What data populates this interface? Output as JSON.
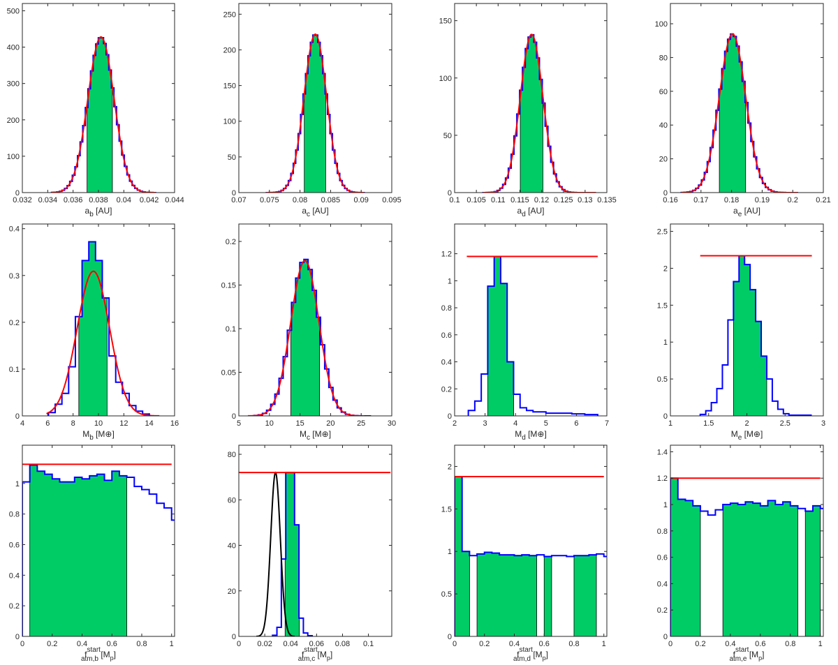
{
  "colors": {
    "bar_fill": "#00cc66",
    "hist_line": "#0000ff",
    "fit_line": "#ff0000",
    "prior_line": "#000000",
    "axis": "#262626"
  },
  "chart_data": [
    {
      "type": "bar",
      "id": "a_b",
      "xlabel": {
        "main": "a",
        "sub": "b",
        "sup": "",
        "unit": " [AU]"
      },
      "xlim": [
        0.032,
        0.044
      ],
      "ylim": [
        0,
        520
      ],
      "xticks": [
        0.032,
        0.034,
        0.036,
        0.038,
        0.04,
        0.042,
        0.044
      ],
      "xtick_labels": [
        "0.032",
        "0.034",
        "0.036",
        "0.038",
        "0.04",
        "0.042",
        "0.044"
      ],
      "yticks": [
        0,
        100,
        200,
        300,
        400,
        500
      ],
      "ytick_labels": [
        "0",
        "100",
        "200",
        "300",
        "400",
        "500"
      ],
      "hist": {
        "center": 0.0382,
        "sigma": 0.00103,
        "peak": 428,
        "bins": 40,
        "range": [
          0.0343,
          0.0425
        ]
      },
      "fit": {
        "kind": "gaussian",
        "center": 0.0382,
        "sigma": 0.00103,
        "peak": 428
      },
      "shaded": [
        [
          0.0371,
          0.0391
        ]
      ]
    },
    {
      "type": "bar",
      "id": "a_c",
      "xlabel": {
        "main": "a",
        "sub": "c",
        "sup": "",
        "unit": " [AU]"
      },
      "xlim": [
        0.07,
        0.095
      ],
      "ylim": [
        0,
        265
      ],
      "xticks": [
        0.07,
        0.075,
        0.08,
        0.085,
        0.09,
        0.095
      ],
      "xtick_labels": [
        "0.07",
        "0.075",
        "0.08",
        "0.085",
        "0.09",
        "0.095"
      ],
      "yticks": [
        0,
        50,
        100,
        150,
        200,
        250
      ],
      "ytick_labels": [
        "0",
        "50",
        "100",
        "150",
        "200",
        "250"
      ],
      "hist": {
        "center": 0.0825,
        "sigma": 0.00185,
        "peak": 222,
        "bins": 40,
        "range": [
          0.0745,
          0.0905
        ]
      },
      "fit": {
        "kind": "gaussian",
        "center": 0.0825,
        "sigma": 0.00185,
        "peak": 222
      },
      "shaded": [
        [
          0.0807,
          0.0842
        ]
      ]
    },
    {
      "type": "bar",
      "id": "a_d",
      "xlabel": {
        "main": "a",
        "sub": "d",
        "sup": "",
        "unit": " [AU]"
      },
      "xlim": [
        0.1,
        0.135
      ],
      "ylim": [
        0,
        165
      ],
      "xticks": [
        0.1,
        0.105,
        0.11,
        0.115,
        0.12,
        0.125,
        0.13,
        0.135
      ],
      "xtick_labels": [
        "0.1",
        "0.105",
        "0.11",
        "0.115",
        "0.12",
        "0.125",
        "0.13",
        "0.135"
      ],
      "yticks": [
        0,
        50,
        100,
        150
      ],
      "ytick_labels": [
        "0",
        "50",
        "100",
        "150"
      ],
      "hist": {
        "center": 0.1177,
        "sigma": 0.0026,
        "peak": 138,
        "bins": 40,
        "range": [
          0.1065,
          0.1325
        ]
      },
      "fit": {
        "kind": "gaussian",
        "center": 0.1177,
        "sigma": 0.0026,
        "peak": 138
      },
      "shaded": [
        [
          0.1151,
          0.1203
        ]
      ]
    },
    {
      "type": "bar",
      "id": "a_e",
      "xlabel": {
        "main": "a",
        "sub": "e",
        "sup": "",
        "unit": " [AU]"
      },
      "xlim": [
        0.16,
        0.21
      ],
      "ylim": [
        0,
        112
      ],
      "xticks": [
        0.16,
        0.17,
        0.18,
        0.19,
        0.2,
        0.21
      ],
      "xtick_labels": [
        "0.16",
        "0.17",
        "0.18",
        "0.19",
        "0.2",
        "0.21"
      ],
      "yticks": [
        0,
        20,
        40,
        60,
        80,
        100
      ],
      "ytick_labels": [
        "0",
        "20",
        "40",
        "60",
        "80",
        "100"
      ],
      "hist": {
        "center": 0.1803,
        "sigma": 0.0043,
        "peak": 94,
        "bins": 40,
        "range": [
          0.1635,
          0.2015
        ]
      },
      "fit": {
        "kind": "gaussian",
        "center": 0.1803,
        "sigma": 0.0043,
        "peak": 94
      },
      "shaded": [
        [
          0.176,
          0.1846
        ]
      ]
    },
    {
      "type": "bar",
      "id": "M_b",
      "xlabel": {
        "main": "M",
        "sub": "b",
        "sup": "",
        "unit": " [M⊕]"
      },
      "xlim": [
        4,
        16
      ],
      "ylim": [
        0,
        0.41
      ],
      "xticks": [
        4,
        6,
        8,
        10,
        12,
        14,
        16
      ],
      "xtick_labels": [
        "4",
        "6",
        "8",
        "10",
        "12",
        "14",
        "16"
      ],
      "yticks": [
        0,
        0.1,
        0.2,
        0.3,
        0.4
      ],
      "ytick_labels": [
        "0",
        "0.1",
        "0.2",
        "0.3",
        "0.4"
      ],
      "steps": {
        "x0": 6.06,
        "width": 0.53,
        "values": [
          0.007,
          0.025,
          0.048,
          0.105,
          0.212,
          0.332,
          0.372,
          0.332,
          0.252,
          0.128,
          0.072,
          0.048,
          0.022,
          0.01,
          0.004
        ]
      },
      "fit": {
        "kind": "gaussian",
        "center": 9.6,
        "sigma": 1.28,
        "peak": 0.309,
        "x_from": 5.9,
        "x_to": 14.8
      },
      "shaded": [
        [
          8.45,
          10.68
        ]
      ]
    },
    {
      "type": "bar",
      "id": "M_c",
      "xlabel": {
        "main": "M",
        "sub": "c",
        "sup": "",
        "unit": " [M⊕]"
      },
      "xlim": [
        5,
        30
      ],
      "ylim": [
        0,
        0.22
      ],
      "xticks": [
        5,
        10,
        15,
        20,
        25,
        30
      ],
      "xtick_labels": [
        "5",
        "10",
        "15",
        "20",
        "25",
        "30"
      ],
      "yticks": [
        0,
        0.05,
        0.1,
        0.15,
        0.2
      ],
      "ytick_labels": [
        "0",
        "0.05",
        "0.1",
        "0.15",
        "0.2"
      ],
      "hist": {
        "center": 15.8,
        "sigma": 2.3,
        "peak": 0.18,
        "bins": 28,
        "range": [
          7.5,
          26.5
        ]
      },
      "fit": {
        "kind": "gaussian",
        "center": 15.8,
        "sigma": 2.3,
        "peak": 0.178,
        "x_from": 6.5,
        "x_to": 25.5
      },
      "shaded": [
        [
          13.5,
          18.2
        ]
      ]
    },
    {
      "type": "bar",
      "id": "M_d",
      "xlabel": {
        "main": "M",
        "sub": "d",
        "sup": "",
        "unit": " [M⊕]"
      },
      "xlim": [
        2,
        7
      ],
      "ylim": [
        0,
        1.42
      ],
      "xticks": [
        2,
        3,
        4,
        5,
        6,
        7
      ],
      "xtick_labels": [
        "2",
        "3",
        "4",
        "5",
        "6",
        "7"
      ],
      "yticks": [
        0,
        0.2,
        0.4,
        0.6,
        0.8,
        1,
        1.2
      ],
      "ytick_labels": [
        "0",
        "0.2",
        "0.4",
        "0.6",
        "0.8",
        "1",
        "1.2"
      ],
      "steps": {
        "x0": 2.45,
        "width": 0.2125,
        "values": [
          0.04,
          0.11,
          0.31,
          0.96,
          1.18,
          0.98,
          0.4,
          0.16,
          0.06,
          0.04,
          0.03,
          0.03,
          0.02,
          0.02,
          0.02,
          0.02,
          0.015,
          0.015,
          0.01,
          0.01
        ]
      },
      "fit": {
        "kind": "hline",
        "value": 1.18,
        "x_from": 2.4,
        "x_to": 6.7
      },
      "shaded": [
        [
          3.09,
          3.94
        ]
      ]
    },
    {
      "type": "bar",
      "id": "M_e",
      "xlabel": {
        "main": "M",
        "sub": "e",
        "sup": "",
        "unit": " [M⊕]"
      },
      "xlim": [
        1,
        3
      ],
      "ylim": [
        0,
        2.6
      ],
      "xticks": [
        1,
        1.5,
        2,
        2.5,
        3
      ],
      "xtick_labels": [
        "1",
        "1.5",
        "2",
        "2.5",
        "3"
      ],
      "yticks": [
        0,
        0.5,
        1,
        1.5,
        2,
        2.5
      ],
      "ytick_labels": [
        "0",
        "0.5",
        "1",
        "1.5",
        "2",
        "2.5"
      ],
      "steps": {
        "x0": 1.39,
        "width": 0.0725,
        "values": [
          0.02,
          0.07,
          0.18,
          0.37,
          0.69,
          1.3,
          1.82,
          2.17,
          2.05,
          1.71,
          1.28,
          0.81,
          0.5,
          0.2,
          0.09,
          0.03,
          0.01,
          0.01,
          0.01,
          0.01
        ]
      },
      "fit": {
        "kind": "hline",
        "value": 2.17,
        "x_from": 1.39,
        "x_to": 2.85
      },
      "shaded": [
        [
          1.825,
          2.26
        ]
      ]
    },
    {
      "type": "bar",
      "id": "f_b",
      "xlabel": {
        "main": "f",
        "sub": "atm,b",
        "sup": "start",
        "unit": " [M",
        "unit_sub": "p",
        "unit_end": "]"
      },
      "xlim": [
        0,
        1.02
      ],
      "ylim": [
        0,
        1.25
      ],
      "xticks": [
        0,
        0.2,
        0.4,
        0.6,
        0.8,
        1
      ],
      "xtick_labels": [
        "0",
        "0.2",
        "0.4",
        "0.6",
        "0.8",
        "1"
      ],
      "yticks": [
        0,
        0.2,
        0.4,
        0.6,
        0.8,
        1
      ],
      "ytick_labels": [
        "0",
        "0.2",
        "0.4",
        "0.6",
        "0.8",
        "1"
      ],
      "steps": {
        "x0": 0,
        "width": 0.05,
        "values": [
          1.01,
          1.12,
          1.08,
          1.06,
          1.03,
          1.01,
          1.01,
          1.04,
          1.03,
          1.05,
          1.06,
          1.02,
          1.08,
          1.05,
          1.04,
          0.98,
          0.96,
          0.93,
          0.87,
          0.84,
          0.76
        ]
      },
      "fit": {
        "kind": "hline",
        "value": 1.125,
        "x_from": 0,
        "x_to": 1.0
      },
      "shaded": [
        [
          0.05,
          0.7
        ]
      ]
    },
    {
      "type": "bar",
      "id": "f_c",
      "xlabel": {
        "main": "f",
        "sub": "atm,c",
        "sup": "start",
        "unit": " [M",
        "unit_sub": "p",
        "unit_end": "]"
      },
      "xlim": [
        0,
        0.118
      ],
      "ylim": [
        0,
        84
      ],
      "xticks": [
        0,
        0.02,
        0.04,
        0.06,
        0.08,
        0.1
      ],
      "xtick_labels": [
        "0",
        "0.02",
        "0.04",
        "0.06",
        "0.08",
        "0.1"
      ],
      "yticks": [
        0,
        20,
        40,
        60,
        80
      ],
      "ytick_labels": [
        "0",
        "20",
        "40",
        "60",
        "80"
      ],
      "steps": {
        "x0": 0.026,
        "width": 0.0034,
        "values": [
          0.5,
          4,
          34,
          72,
          72,
          49,
          8,
          1.5,
          0.3
        ]
      },
      "fit": {
        "kind": "hline",
        "value": 72,
        "x_from": 0,
        "x_to": 0.117
      },
      "prior": {
        "center": 0.0283,
        "sigma": 0.0037,
        "peak": 72
      },
      "shaded": [
        [
          0.0357,
          0.0467
        ]
      ]
    },
    {
      "type": "bar",
      "id": "f_d",
      "xlabel": {
        "main": "f",
        "sub": "atm,d",
        "sup": "start",
        "unit": " [M",
        "unit_sub": "p",
        "unit_end": "]"
      },
      "xlim": [
        0,
        1.02
      ],
      "ylim": [
        0,
        2.25
      ],
      "xticks": [
        0,
        0.2,
        0.4,
        0.6,
        0.8,
        1
      ],
      "xtick_labels": [
        "0",
        "0.2",
        "0.4",
        "0.6",
        "0.8",
        "1"
      ],
      "yticks": [
        0,
        0.5,
        1,
        1.5,
        2
      ],
      "ytick_labels": [
        "0",
        "0.5",
        "1",
        "1.5",
        "2"
      ],
      "steps": {
        "x0": 0,
        "width": 0.05,
        "values": [
          1.88,
          1.0,
          0.95,
          0.97,
          0.99,
          0.98,
          0.96,
          0.96,
          0.95,
          0.96,
          0.95,
          0.96,
          0.94,
          0.95,
          0.95,
          0.94,
          0.95,
          0.95,
          0.96,
          0.97,
          0.94
        ]
      },
      "fit": {
        "kind": "hline",
        "value": 1.88,
        "x_from": 0,
        "x_to": 1.0
      },
      "shaded": [
        [
          0.0,
          0.1
        ],
        [
          0.15,
          0.55
        ],
        [
          0.6,
          0.65
        ],
        [
          0.8,
          0.95
        ]
      ]
    },
    {
      "type": "bar",
      "id": "f_e",
      "xlabel": {
        "main": "f",
        "sub": "atm,e",
        "sup": "start",
        "unit": " [M",
        "unit_sub": "p",
        "unit_end": "]"
      },
      "xlim": [
        0,
        1.02
      ],
      "ylim": [
        0,
        1.45
      ],
      "xticks": [
        0,
        0.2,
        0.4,
        0.6,
        0.8,
        1
      ],
      "xtick_labels": [
        "0",
        "0.2",
        "0.4",
        "0.6",
        "0.8",
        "1"
      ],
      "yticks": [
        0,
        0.2,
        0.4,
        0.6,
        0.8,
        1,
        1.2,
        1.4
      ],
      "ytick_labels": [
        "0",
        "0.2",
        "0.4",
        "0.6",
        "0.8",
        "1",
        "1.2",
        "1.4"
      ],
      "steps": {
        "x0": 0,
        "width": 0.05,
        "values": [
          1.2,
          1.04,
          1.03,
          0.99,
          0.95,
          0.92,
          0.96,
          1.0,
          1.01,
          1.0,
          1.02,
          1.01,
          0.99,
          1.03,
          1.0,
          1.02,
          0.99,
          0.97,
          0.95,
          0.99,
          0.97
        ]
      },
      "fit": {
        "kind": "hline",
        "value": 1.2,
        "x_from": 0,
        "x_to": 1.0
      },
      "shaded": [
        [
          0.0,
          0.2
        ],
        [
          0.35,
          0.85
        ],
        [
          0.9,
          1.0
        ]
      ]
    }
  ]
}
